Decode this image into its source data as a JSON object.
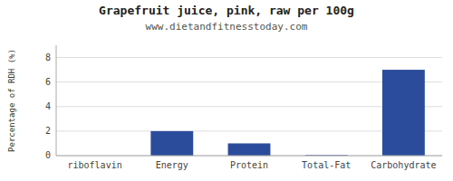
{
  "chart_data": {
    "type": "bar",
    "title": "Grapefruit juice, pink, raw per 100g",
    "subtitle": "www.dietandfitnesstoday.com",
    "categories": [
      "riboflavin",
      "Energy",
      "Protein",
      "Total-Fat",
      "Carbohydrate"
    ],
    "values": [
      0.0,
      2.0,
      1.0,
      0.05,
      7.0
    ],
    "color": "#2b4b9b",
    "ylabel": "Percentage of RDH (%)",
    "ylim": [
      0,
      9
    ],
    "yticks": [
      0,
      2,
      4,
      6,
      8
    ],
    "grid": true
  }
}
